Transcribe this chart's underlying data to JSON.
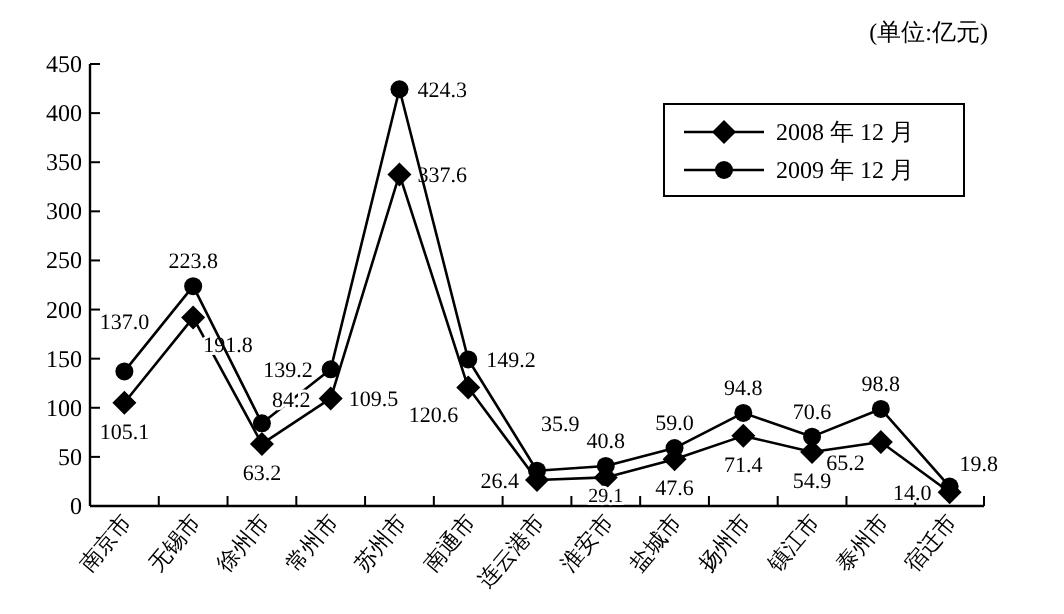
{
  "chart_data": {
    "type": "line",
    "annotations": [
      "(单位:亿元)"
    ],
    "categories": [
      "南京市",
      "无锡市",
      "徐州市",
      "常州市",
      "苏州市",
      "南通市",
      "连云港市",
      "淮安市",
      "盐城市",
      "扬州市",
      "镇江市",
      "泰州市",
      "宿迁市"
    ],
    "series": [
      {
        "name": "2008 年 12 月",
        "color": "#000000",
        "marker": "diamond",
        "values": [
          105.1,
          191.8,
          63.2,
          109.5,
          337.6,
          120.6,
          26.4,
          29.1,
          47.6,
          71.4,
          54.9,
          65.2,
          14.0
        ],
        "value_labels": [
          "105.1",
          "191.8",
          "63.2",
          "109.5",
          "337.6",
          "120.6",
          "26.4",
          "29.1",
          "47.6",
          "71.4",
          "54.9",
          "65.2",
          "14.0"
        ]
      },
      {
        "name": "2009 年 12 月",
        "color": "#000000",
        "marker": "circle",
        "values": [
          137.0,
          223.8,
          84.2,
          139.2,
          424.3,
          149.2,
          35.9,
          40.8,
          59.0,
          94.8,
          70.6,
          98.8,
          19.8
        ],
        "value_labels": [
          "137.0",
          "223.8",
          "84.2",
          "139.2",
          "424.3",
          "149.2",
          "35.9",
          "40.8",
          "59.0",
          "94.8",
          "70.6",
          "98.8",
          "19.8"
        ]
      }
    ],
    "ylim": [
      0,
      450
    ],
    "yticks": [
      0,
      50,
      100,
      150,
      200,
      250,
      300,
      350,
      400,
      450
    ],
    "legend": "top right",
    "grid": false,
    "line_style": "solid"
  }
}
